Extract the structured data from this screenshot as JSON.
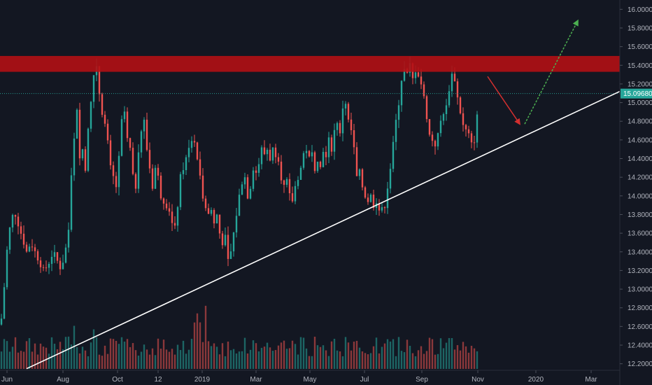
{
  "chart_data": {
    "type": "candlestick",
    "title": "",
    "colors": {
      "background": "#131722",
      "up": "#26a69a",
      "down": "#ef5350",
      "resistance_zone": "#b20f14",
      "trendline": "#ffffff",
      "arrow_down": "#d32f2f",
      "arrow_up": "#4caf50",
      "current_price_line": "#26a69a",
      "axis_text": "#b2b5be"
    },
    "y_axis": {
      "ticks": [
        "16.00000",
        "15.80000",
        "15.60000",
        "15.40000",
        "15.20000",
        "15.00000",
        "14.80000",
        "14.60000",
        "14.40000",
        "14.20000",
        "14.00000",
        "13.80000",
        "13.60000",
        "13.40000",
        "13.20000",
        "13.00000",
        "12.80000",
        "12.60000",
        "12.40000",
        "12.20000"
      ],
      "range": [
        12.13,
        16.1
      ]
    },
    "x_axis": {
      "ticks": [
        "Jun",
        "Aug",
        "Oct",
        "12",
        "2019",
        "Mar",
        "May",
        "Jul",
        "Sep",
        "Nov",
        "2020",
        "Mar"
      ]
    },
    "current_price": {
      "value": 15.0968,
      "label": "15.09680"
    },
    "resistance_zone": {
      "low": 15.33,
      "high": 15.5
    },
    "trendline": {
      "points": [
        [
          "Jun",
          12.14
        ],
        [
          "Mar",
          15.12
        ]
      ]
    },
    "projection_arrows": [
      {
        "name": "down",
        "from": 15.28,
        "to": 14.74
      },
      {
        "name": "up",
        "from": 14.74,
        "to": 15.88
      }
    ],
    "price_anchors": [
      [
        0,
        12.62
      ],
      [
        4,
        12.75
      ],
      [
        8,
        13.3
      ],
      [
        14,
        13.65
      ],
      [
        20,
        13.85
      ],
      [
        26,
        13.7
      ],
      [
        32,
        13.55
      ],
      [
        38,
        13.4
      ],
      [
        44,
        13.5
      ],
      [
        50,
        13.4
      ],
      [
        56,
        13.3
      ],
      [
        62,
        13.2
      ],
      [
        68,
        13.25
      ],
      [
        76,
        13.4
      ],
      [
        82,
        13.3
      ],
      [
        88,
        13.2
      ],
      [
        92,
        13.4
      ],
      [
        97,
        13.5
      ],
      [
        102,
        14.2
      ],
      [
        106,
        14.6
      ],
      [
        110,
        14.9
      ],
      [
        114,
        14.4
      ],
      [
        118,
        14.5
      ],
      [
        122,
        14.3
      ],
      [
        126,
        14.7
      ],
      [
        130,
        15.0
      ],
      [
        134,
        15.3
      ],
      [
        138,
        15.4
      ],
      [
        142,
        15.1
      ],
      [
        146,
        14.9
      ],
      [
        152,
        14.7
      ],
      [
        158,
        14.3
      ],
      [
        162,
        14.2
      ],
      [
        166,
        14.1
      ],
      [
        170,
        14.4
      ],
      [
        174,
        14.8
      ],
      [
        178,
        14.9
      ],
      [
        182,
        14.6
      ],
      [
        186,
        14.5
      ],
      [
        190,
        14.2
      ],
      [
        194,
        14.1
      ],
      [
        198,
        14.5
      ],
      [
        202,
        14.7
      ],
      [
        206,
        14.8
      ],
      [
        210,
        14.5
      ],
      [
        214,
        14.3
      ],
      [
        218,
        14.1
      ],
      [
        222,
        14.3
      ],
      [
        226,
        14.2
      ],
      [
        230,
        14.0
      ],
      [
        234,
        13.95
      ],
      [
        238,
        13.9
      ],
      [
        242,
        13.85
      ],
      [
        246,
        13.7
      ],
      [
        250,
        13.65
      ],
      [
        254,
        13.9
      ],
      [
        258,
        14.2
      ],
      [
        262,
        14.3
      ],
      [
        266,
        14.4
      ],
      [
        270,
        14.5
      ],
      [
        274,
        14.6
      ],
      [
        278,
        14.55
      ],
      [
        282,
        14.4
      ],
      [
        286,
        14.2
      ],
      [
        290,
        14.0
      ],
      [
        294,
        13.9
      ],
      [
        298,
        13.8
      ],
      [
        302,
        13.85
      ],
      [
        306,
        13.7
      ],
      [
        310,
        13.8
      ],
      [
        314,
        13.6
      ],
      [
        318,
        13.5
      ],
      [
        322,
        13.55
      ],
      [
        326,
        13.3
      ],
      [
        330,
        13.4
      ],
      [
        334,
        13.6
      ],
      [
        338,
        13.8
      ],
      [
        342,
        14.0
      ],
      [
        346,
        14.15
      ],
      [
        350,
        14.2
      ],
      [
        354,
        14.0
      ],
      [
        358,
        14.1
      ],
      [
        362,
        14.3
      ],
      [
        366,
        14.25
      ],
      [
        370,
        14.35
      ],
      [
        374,
        14.5
      ],
      [
        378,
        14.45
      ],
      [
        382,
        14.5
      ],
      [
        386,
        14.4
      ],
      [
        390,
        14.5
      ],
      [
        394,
        14.45
      ],
      [
        398,
        14.4
      ],
      [
        402,
        14.2
      ],
      [
        406,
        14.1
      ],
      [
        410,
        14.15
      ],
      [
        414,
        14.0
      ],
      [
        418,
        13.95
      ],
      [
        422,
        14.1
      ],
      [
        426,
        14.2
      ],
      [
        430,
        14.3
      ],
      [
        434,
        14.45
      ],
      [
        438,
        14.5
      ],
      [
        442,
        14.4
      ],
      [
        446,
        14.45
      ],
      [
        450,
        14.3
      ],
      [
        454,
        14.4
      ],
      [
        458,
        14.3
      ],
      [
        462,
        14.5
      ],
      [
        466,
        14.4
      ],
      [
        470,
        14.6
      ],
      [
        474,
        14.5
      ],
      [
        478,
        14.7
      ],
      [
        482,
        14.8
      ],
      [
        486,
        14.65
      ],
      [
        490,
        14.95
      ],
      [
        494,
        15.0
      ],
      [
        498,
        14.8
      ],
      [
        502,
        14.7
      ],
      [
        506,
        14.5
      ],
      [
        510,
        14.2
      ],
      [
        514,
        14.25
      ],
      [
        518,
        14.1
      ],
      [
        522,
        14.0
      ],
      [
        526,
        13.95
      ],
      [
        530,
        14.0
      ],
      [
        534,
        13.9
      ],
      [
        538,
        13.95
      ],
      [
        542,
        13.85
      ],
      [
        546,
        13.85
      ],
      [
        550,
        13.9
      ],
      [
        554,
        14.1
      ],
      [
        558,
        14.3
      ],
      [
        562,
        14.55
      ],
      [
        566,
        14.8
      ],
      [
        570,
        15.0
      ],
      [
        574,
        15.25
      ],
      [
        578,
        15.35
      ],
      [
        582,
        15.3
      ],
      [
        586,
        15.4
      ],
      [
        590,
        15.25
      ],
      [
        594,
        15.35
      ],
      [
        598,
        15.3
      ],
      [
        602,
        15.2
      ],
      [
        606,
        15.05
      ],
      [
        610,
        14.85
      ],
      [
        614,
        14.65
      ],
      [
        618,
        14.6
      ],
      [
        622,
        14.55
      ],
      [
        626,
        14.65
      ],
      [
        630,
        14.8
      ],
      [
        634,
        14.9
      ],
      [
        638,
        14.95
      ],
      [
        642,
        15.15
      ],
      [
        646,
        15.3
      ],
      [
        650,
        15.25
      ],
      [
        654,
        15.05
      ],
      [
        658,
        14.9
      ],
      [
        662,
        14.75
      ],
      [
        666,
        14.7
      ],
      [
        670,
        14.65
      ],
      [
        674,
        14.55
      ],
      [
        678,
        14.6
      ],
      [
        682,
        14.85
      ],
      [
        685,
        15.1
      ]
    ]
  }
}
